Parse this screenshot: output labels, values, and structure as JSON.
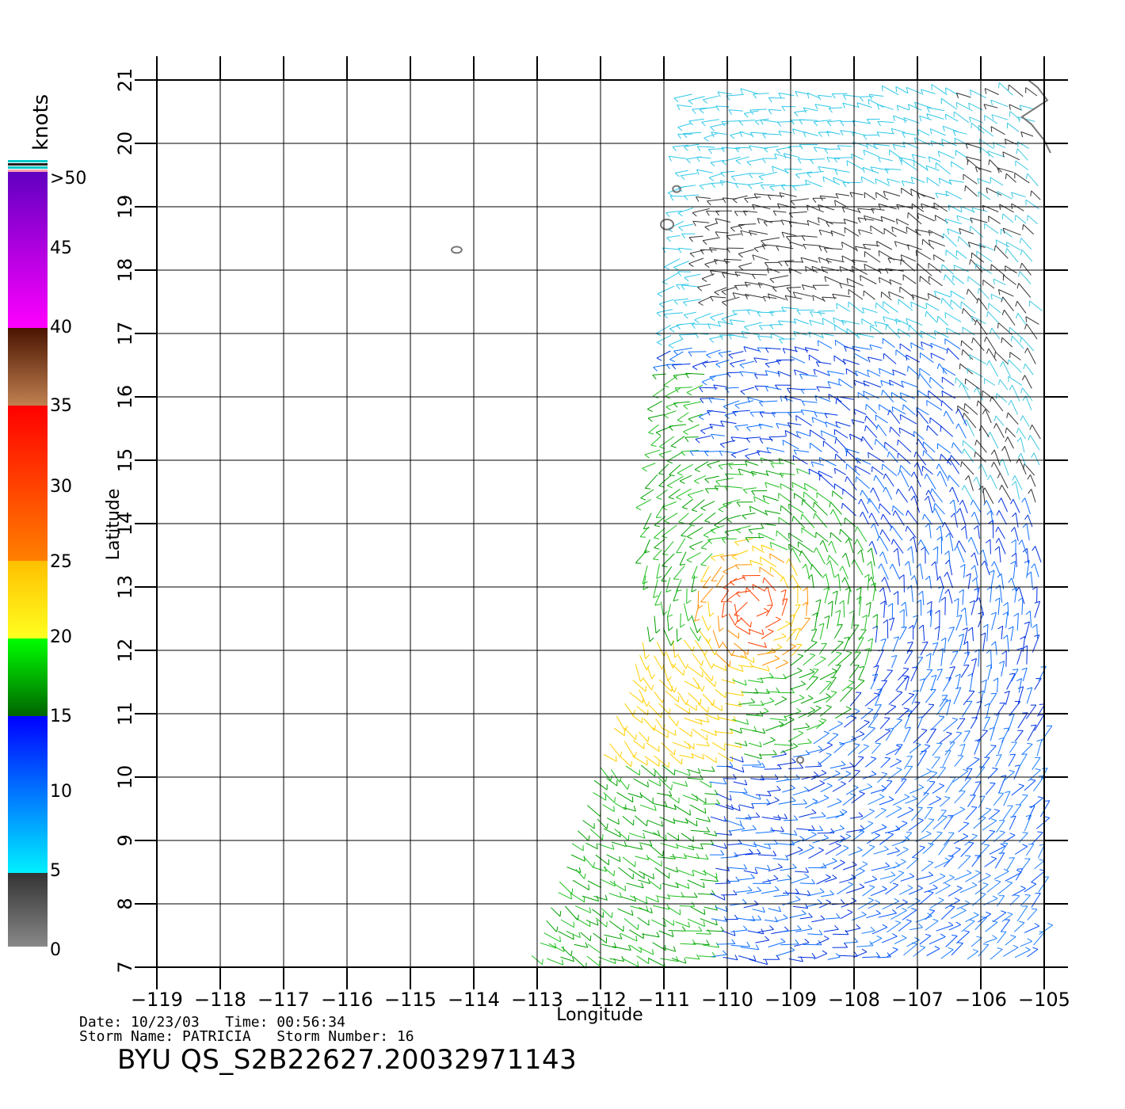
{
  "legend": {
    "unit": "knots",
    "ticks": [
      "0",
      "5",
      "10",
      "15",
      "20",
      "25",
      "30",
      "35",
      "40",
      "45",
      ">50"
    ],
    "colors": {
      "0-5": [
        "#888888",
        "#333333"
      ],
      "5-15": [
        "#00f0ff",
        "#0000ff"
      ],
      "15-20": [
        "#006400",
        "#00ff00"
      ],
      "20-25": [
        "#ffff20",
        "#ffc000"
      ],
      "25-35": [
        "#ff8000",
        "#ff0000"
      ],
      "35-40": [
        "#c08050",
        "#4a1400"
      ],
      "40-50": [
        "#ff00ff",
        "#6000c0"
      ],
      "top_bands": [
        "#ff9fb0",
        "#00c8c8",
        "#202020",
        "#00c8c8"
      ]
    }
  },
  "axes": {
    "xlabel": "Longitude",
    "ylabel": "Latitude",
    "lon_ticks": [
      "-119",
      "-118",
      "-117",
      "-116",
      "-115",
      "-114",
      "-113",
      "-112",
      "-111",
      "-110",
      "-109",
      "-108",
      "-107",
      "-106",
      "-105"
    ],
    "lat_ticks": [
      "7",
      "8",
      "9",
      "10",
      "11",
      "12",
      "13",
      "14",
      "15",
      "16",
      "17",
      "18",
      "19",
      "20",
      "21"
    ],
    "lon_range": [
      -119,
      -105
    ],
    "lat_range": [
      7,
      21
    ],
    "grid": true
  },
  "footer": {
    "line1": "Date: 10/23/03   Time: 00:56:34",
    "line2": "Storm Name: PATRICIA   Storm Number: 16",
    "title": "BYU QS_S2B22627.20032971143"
  }
}
